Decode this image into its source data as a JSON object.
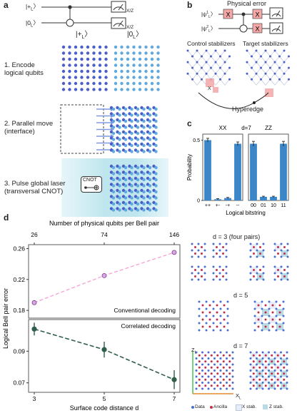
{
  "panel_a": {
    "label": "a",
    "ket_plus": "|+",
    "ket_zero": "|0",
    "ket_sub": "L",
    "meas_label": "X/Z",
    "col_plus": "|+",
    "col_zero": "|0",
    "step1_line1": "1. Encode",
    "step1_line2": "logical qubits",
    "step2_line1": "2. Parallel move",
    "step2_line2": "(interface)",
    "step3_line1": "3. Pulse global laser",
    "step3_line2": "(transversal CNOT)",
    "cnot_label": "CNOT"
  },
  "panel_b": {
    "label": "b",
    "physical_error": "Physical error",
    "psi": "|ψ",
    "psi_sup1": "1",
    "psi_sup2": "2",
    "x_gate": "X",
    "control_stab": "Control stabilizers",
    "target_stab": "Target stabilizers",
    "hyperedge": "Hyperedge",
    "x_error": "X"
  },
  "panel_c": {
    "label": "c",
    "title_xx": "XX",
    "title_d": "d=7",
    "title_zz": "ZZ",
    "ylabel": "Probability",
    "xlabel": "Logical bitstring",
    "yticks": [
      "0",
      "0.5"
    ]
  },
  "panel_d": {
    "label": "d",
    "top_axis_label": "Number of physical qubits per Bell pair",
    "top_ticks": [
      "26",
      "74",
      "146"
    ],
    "ylabel": "Logical Bell pair error",
    "xlabel": "Surface code distance d",
    "upper_yticks": [
      "0.26",
      "0.22",
      "0.18"
    ],
    "lower_yticks": [
      "0.09",
      "0.07"
    ],
    "xticks": [
      "3",
      "5",
      "7"
    ],
    "conventional": "Conventional decoding",
    "correlated": "Correlated decoding"
  },
  "panel_e": {
    "d3": "d = 3 (four pairs)",
    "d5": "d = 5",
    "d7": "d = 7",
    "z_axis": "Z",
    "x_axis": "X",
    "axis_sub": "L",
    "legend": [
      "Data",
      "Ancilla",
      "X stab.",
      "Z stab."
    ]
  },
  "chart_data": [
    {
      "type": "bar",
      "title": "XX",
      "categories": [
        "++",
        "+-",
        "-+",
        "--"
      ],
      "values": [
        0.5,
        0.01,
        0.02,
        0.47
      ],
      "errors": [
        0.015,
        0.005,
        0.005,
        0.015
      ],
      "ylabel": "Probability",
      "xlabel": "Logical bitstring",
      "ylim": [
        0,
        0.55
      ],
      "colors": {
        "bar": "#3a86c8"
      }
    },
    {
      "type": "bar",
      "title": "ZZ",
      "categories": [
        "00",
        "01",
        "10",
        "11"
      ],
      "values": [
        0.47,
        0.03,
        0.03,
        0.47
      ],
      "errors": [
        0.02,
        0.005,
        0.005,
        0.02
      ],
      "ylim": [
        0,
        0.55
      ],
      "colors": {
        "bar": "#3a86c8"
      }
    },
    {
      "type": "line",
      "x": [
        3,
        5,
        7
      ],
      "x_top": [
        26,
        74,
        146
      ],
      "values": [
        0.19,
        0.225,
        0.255
      ],
      "ylim": [
        0.17,
        0.265
      ],
      "series_label": "Conventional decoding",
      "colors": {
        "line": "#f4a6d7",
        "marker_fill": "#d9a6e8",
        "marker_edge": "#7a3a8a"
      }
    },
    {
      "type": "line",
      "x": [
        3,
        5,
        7
      ],
      "values": [
        0.104,
        0.091,
        0.072
      ],
      "errors": [
        0.004,
        0.005,
        0.006
      ],
      "ylim": [
        0.064,
        0.11
      ],
      "series_label": "Correlated decoding",
      "colors": {
        "line": "#2f5e4a",
        "marker": "#2f5e4a"
      }
    }
  ]
}
